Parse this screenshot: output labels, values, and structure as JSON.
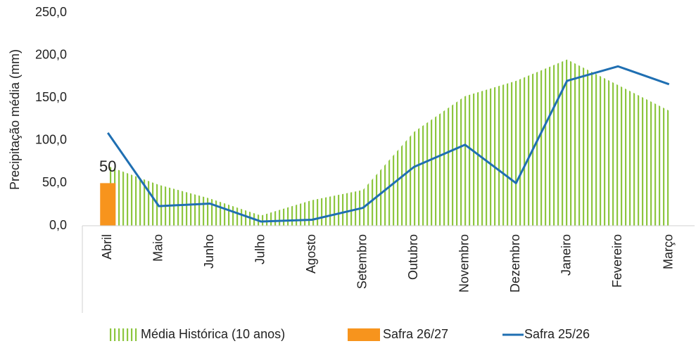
{
  "chart_data": {
    "type": "combo",
    "ylabel": "Precipitação média (mm)",
    "categories": [
      "Abril",
      "Maio",
      "Junho",
      "Julho",
      "Agosto",
      "Setembro",
      "Outubro",
      "Novembro",
      "Dezembro",
      "Janeiro",
      "Fevereiro",
      "Março"
    ],
    "series": [
      {
        "name": "Média Histórica (10 anos)",
        "type": "area",
        "color": "#8dc63f",
        "values": [
          70,
          48,
          32,
          12,
          30,
          42,
          110,
          152,
          170,
          195,
          165,
          135
        ]
      },
      {
        "name": "Safra 26/27",
        "type": "bar",
        "color": "#f7941d",
        "values": [
          50,
          null,
          null,
          null,
          null,
          null,
          null,
          null,
          null,
          null,
          null,
          null
        ]
      },
      {
        "name": "Safra 25/26",
        "type": "line",
        "color": "#1f6fb2",
        "values": [
          109,
          23,
          26,
          5,
          7,
          21,
          69,
          95,
          50,
          170,
          187,
          166
        ]
      }
    ],
    "ylim": [
      0,
      250
    ],
    "yticks": [
      {
        "value": 0,
        "label": "0,0"
      },
      {
        "value": 50,
        "label": "50,0"
      },
      {
        "value": 100,
        "label": "100,0"
      },
      {
        "value": 150,
        "label": "150,0"
      },
      {
        "value": 200,
        "label": "200,0"
      },
      {
        "value": 250,
        "label": "250,0"
      }
    ],
    "legend": "bottom"
  }
}
